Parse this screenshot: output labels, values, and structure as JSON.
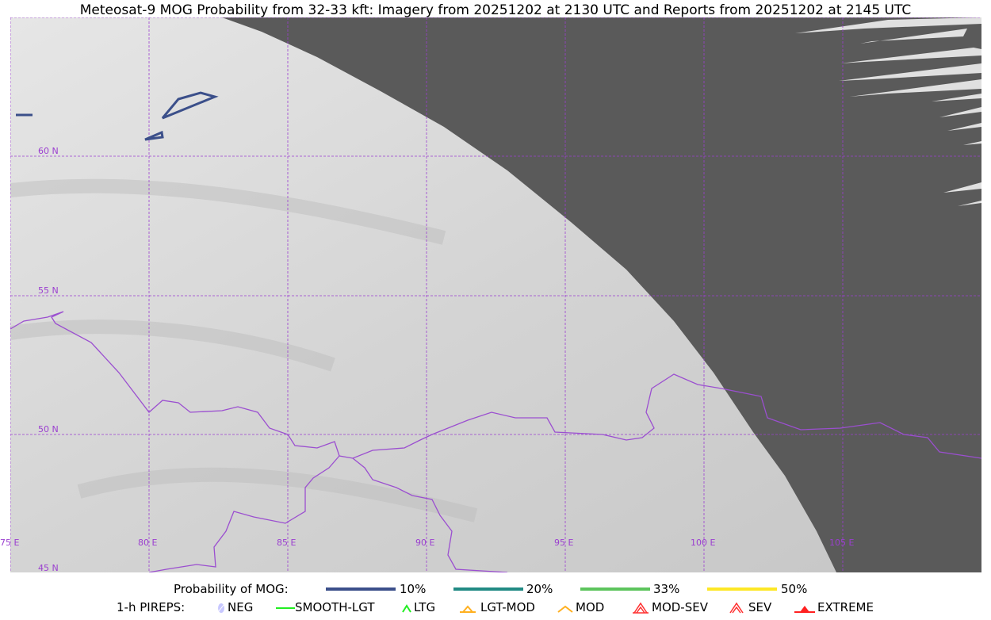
{
  "title": "Meteosat-9 MOG Probability from 32-33 kft: Imagery from 20251202 at 2130 UTC and Reports from 20251202 at 2145 UTC",
  "map": {
    "lon_labels": [
      "75 E",
      "80 E",
      "85 E",
      "90 E",
      "95 E",
      "100 E",
      "105 E"
    ],
    "lat_labels": [
      "60 N",
      "55 N",
      "50 N",
      "45 N"
    ],
    "colors": {
      "grid": "#9b3fd0",
      "border": "#9b4fd0",
      "no_data": "#5a5a5a",
      "contour_10": "#3b4f8a"
    }
  },
  "legend": {
    "probability": {
      "label": "Probability of MOG:",
      "items": [
        {
          "label": "10%",
          "color": "#3b4f8a"
        },
        {
          "label": "20%",
          "color": "#218a84"
        },
        {
          "label": "33%",
          "color": "#5cc45c"
        },
        {
          "label": "50%",
          "color": "#fde725"
        }
      ]
    },
    "pireps": {
      "label": "1-h PIREPS:",
      "items": [
        {
          "label": "NEG",
          "icon": "neg-icon",
          "color": "#c8c8ff"
        },
        {
          "label": "SMOOTH-LGT",
          "icon": "smooth-lgt-icon",
          "color": "#22ee22"
        },
        {
          "label": "LTG",
          "icon": "ltg-icon",
          "color": "#22ee22"
        },
        {
          "label": "LGT-MOD",
          "icon": "lgt-mod-icon",
          "color": "#ffb020"
        },
        {
          "label": "MOD",
          "icon": "mod-icon",
          "color": "#ffb020"
        },
        {
          "label": "MOD-SEV",
          "icon": "mod-sev-icon",
          "color": "#ff3030"
        },
        {
          "label": "SEV",
          "icon": "sev-icon",
          "color": "#ff3030"
        },
        {
          "label": "EXTREME",
          "icon": "extreme-icon",
          "color": "#ff2020"
        }
      ]
    }
  }
}
